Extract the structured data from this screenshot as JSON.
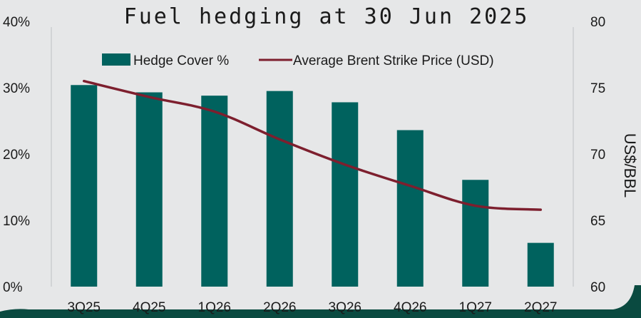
{
  "chart_data": {
    "type": "bar+line",
    "title": "Fuel hedging at 30 Jun 2025",
    "categories": [
      "3Q25",
      "4Q25",
      "1Q26",
      "2Q26",
      "3Q26",
      "4Q26",
      "1Q27",
      "2Q27"
    ],
    "series": [
      {
        "name": "Hedge Cover %",
        "type": "bar",
        "axis": "left",
        "color": "#00625e",
        "values": [
          30.4,
          29.3,
          28.8,
          29.5,
          27.8,
          23.6,
          16.1,
          6.6
        ]
      },
      {
        "name": "Average Brent Strike Price (USD)",
        "type": "line",
        "axis": "right",
        "color": "#7d1f2e",
        "values": [
          75.5,
          74.3,
          73.2,
          71.1,
          69.2,
          67.6,
          66.1,
          65.8
        ]
      }
    ],
    "y_left": {
      "ylim": [
        0,
        40
      ],
      "ticks": [
        "0%",
        "10%",
        "20%",
        "30%",
        "40%"
      ],
      "tick_values": [
        0,
        10,
        20,
        30,
        40
      ]
    },
    "y_right": {
      "ylabel": "US$/BBL",
      "ylim": [
        60,
        80
      ],
      "ticks": [
        "60",
        "65",
        "70",
        "75",
        "80"
      ],
      "tick_values": [
        60,
        65,
        70,
        75,
        80
      ]
    },
    "legend_position": "top-center",
    "grid": false
  }
}
